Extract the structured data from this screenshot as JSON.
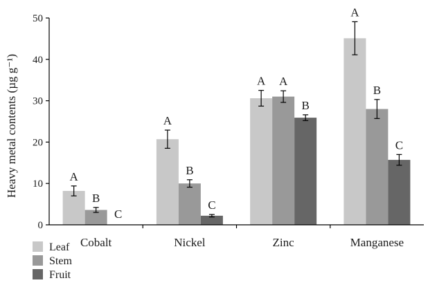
{
  "chart_data": {
    "type": "bar",
    "ylabel": "Heavy metal contents (µg g⁻¹)",
    "xlabel": "",
    "ylim": [
      0,
      50
    ],
    "yticks": [
      0,
      10,
      20,
      30,
      40,
      50
    ],
    "categories": [
      "Cobalt",
      "Nickel",
      "Zinc",
      "Manganese"
    ],
    "series": [
      {
        "name": "Leaf",
        "color": "#c8c8c8",
        "values": [
          8.2,
          20.7,
          30.6,
          45.1
        ],
        "errors": [
          1.2,
          2.2,
          1.9,
          4.0
        ],
        "labels": [
          "A",
          "A",
          "A",
          "A"
        ]
      },
      {
        "name": "Stem",
        "color": "#999999",
        "values": [
          3.6,
          10.0,
          31.0,
          28.0
        ],
        "errors": [
          0.6,
          0.9,
          1.4,
          2.3
        ],
        "labels": [
          "B",
          "B",
          "A",
          "B"
        ]
      },
      {
        "name": "Fruit",
        "color": "#666666",
        "values": [
          0,
          2.2,
          25.9,
          15.7
        ],
        "errors": [
          0,
          0.3,
          0.7,
          1.3
        ],
        "labels": [
          "C",
          "C",
          "B",
          "C"
        ]
      }
    ],
    "legend_position": "bottom-left",
    "grid": false
  }
}
